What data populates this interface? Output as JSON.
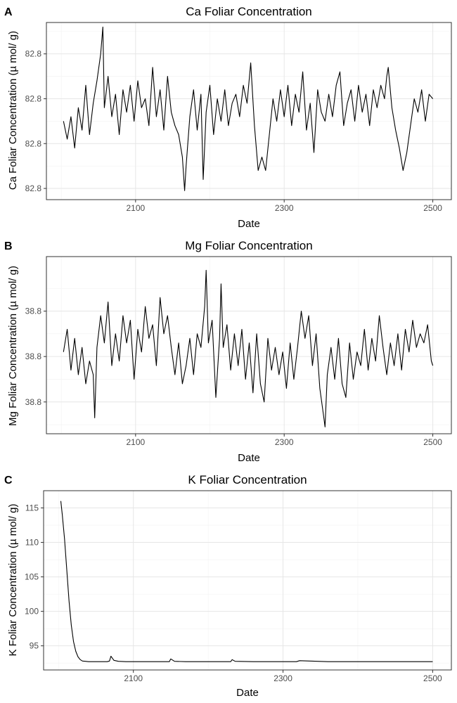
{
  "chart_data": [
    {
      "type": "line",
      "panel": "A",
      "title": "Ca Foliar Concentration",
      "xlabel": "Date",
      "ylabel": "Ca Foliar Concentration (µ mol/ g)",
      "xlim": [
        1980,
        2525
      ],
      "ylim": [
        -1.25,
        2.7
      ],
      "x_ticks": [
        2100,
        2300,
        2500
      ],
      "x_tick_labels": [
        "2100",
        "2300",
        "2500"
      ],
      "y_ticks": [
        -1,
        0,
        1,
        2
      ],
      "y_tick_labels": [
        "82.8",
        "82.8",
        "82.8",
        "82.8"
      ],
      "grid": true,
      "series": [
        {
          "x": [
            2003,
            2008,
            2013,
            2018,
            2023,
            2028,
            2033,
            2038,
            2043,
            2048,
            2053,
            2056,
            2058,
            2063,
            2068,
            2073,
            2078,
            2083,
            2088,
            2093,
            2098,
            2103,
            2108,
            2113,
            2118,
            2123,
            2128,
            2133,
            2138,
            2143,
            2148,
            2153,
            2158,
            2163,
            2166,
            2168,
            2173,
            2178,
            2183,
            2188,
            2191,
            2195,
            2200,
            2205,
            2210,
            2215,
            2220,
            2225,
            2230,
            2235,
            2240,
            2245,
            2250,
            2255,
            2260,
            2265,
            2270,
            2275,
            2280,
            2285,
            2290,
            2295,
            2300,
            2305,
            2310,
            2315,
            2320,
            2325,
            2330,
            2335,
            2340,
            2345,
            2350,
            2355,
            2360,
            2365,
            2370,
            2375,
            2380,
            2385,
            2390,
            2395,
            2400,
            2405,
            2410,
            2415,
            2420,
            2425,
            2430,
            2435,
            2438,
            2440,
            2445,
            2450,
            2455,
            2460,
            2465,
            2470,
            2475,
            2480,
            2485,
            2490,
            2495,
            2500
          ],
          "y": [
            0.5,
            0.1,
            0.6,
            -0.1,
            0.8,
            0.3,
            1.3,
            0.2,
            0.9,
            1.4,
            2.0,
            2.6,
            0.8,
            1.5,
            0.6,
            1.1,
            0.2,
            1.2,
            0.7,
            1.3,
            0.5,
            1.4,
            0.8,
            1.0,
            0.4,
            1.7,
            0.6,
            1.2,
            0.3,
            1.5,
            0.7,
            0.4,
            0.2,
            -0.3,
            -1.05,
            -0.5,
            0.6,
            1.2,
            0.3,
            1.1,
            -0.8,
            0.7,
            1.3,
            0.2,
            1.0,
            0.5,
            1.2,
            0.4,
            0.9,
            1.1,
            0.6,
            1.3,
            0.9,
            1.8,
            0.4,
            -0.6,
            -0.3,
            -0.6,
            0.2,
            1.0,
            0.5,
            1.2,
            0.6,
            1.3,
            0.4,
            1.1,
            0.7,
            1.6,
            0.3,
            0.9,
            -0.2,
            1.2,
            0.7,
            0.5,
            1.1,
            0.6,
            1.3,
            1.6,
            0.4,
            0.9,
            1.2,
            0.5,
            1.3,
            0.7,
            1.1,
            0.4,
            1.2,
            0.8,
            1.3,
            1.0,
            1.5,
            1.7,
            0.8,
            0.3,
            -0.1,
            -0.6,
            -0.2,
            0.4,
            1.0,
            0.7,
            1.2,
            0.5,
            1.1,
            1.0
          ]
        }
      ]
    },
    {
      "type": "line",
      "panel": "B",
      "title": "Mg Foliar Concentration",
      "xlabel": "Date",
      "ylabel": "Mg Foliar Concentration (µ mol/ g)",
      "xlim": [
        1980,
        2525
      ],
      "ylim": [
        -1.7,
        2.2
      ],
      "x_ticks": [
        2100,
        2300,
        2500
      ],
      "x_tick_labels": [
        "2100",
        "2300",
        "2500"
      ],
      "y_ticks": [
        -1,
        0,
        1
      ],
      "y_tick_labels": [
        "38.8",
        "38.8",
        "38.8"
      ],
      "grid": true,
      "series": [
        {
          "x": [
            2003,
            2008,
            2013,
            2018,
            2023,
            2028,
            2033,
            2038,
            2043,
            2045,
            2048,
            2053,
            2058,
            2063,
            2068,
            2073,
            2078,
            2083,
            2088,
            2093,
            2098,
            2103,
            2108,
            2113,
            2118,
            2123,
            2128,
            2133,
            2138,
            2143,
            2148,
            2153,
            2158,
            2163,
            2168,
            2173,
            2178,
            2183,
            2188,
            2193,
            2195,
            2198,
            2203,
            2208,
            2213,
            2215,
            2218,
            2223,
            2228,
            2233,
            2238,
            2243,
            2248,
            2253,
            2258,
            2263,
            2268,
            2273,
            2278,
            2283,
            2288,
            2293,
            2298,
            2303,
            2308,
            2313,
            2318,
            2323,
            2328,
            2333,
            2338,
            2343,
            2348,
            2353,
            2355,
            2358,
            2363,
            2368,
            2373,
            2378,
            2383,
            2388,
            2393,
            2398,
            2403,
            2408,
            2413,
            2418,
            2423,
            2428,
            2433,
            2438,
            2443,
            2448,
            2453,
            2458,
            2463,
            2468,
            2473,
            2478,
            2483,
            2488,
            2493,
            2498,
            2500
          ],
          "y": [
            0.1,
            0.6,
            -0.3,
            0.4,
            -0.4,
            0.2,
            -0.6,
            -0.1,
            -0.4,
            -1.35,
            0.2,
            0.9,
            0.3,
            1.2,
            -0.2,
            0.5,
            -0.1,
            0.9,
            0.3,
            0.8,
            -0.5,
            0.6,
            0.1,
            1.1,
            0.4,
            0.7,
            -0.2,
            1.3,
            0.5,
            0.9,
            0.2,
            -0.4,
            0.3,
            -0.6,
            -0.2,
            0.4,
            -0.4,
            0.5,
            0.2,
            1.1,
            1.9,
            0.3,
            0.8,
            -0.9,
            0.4,
            1.6,
            0.2,
            0.7,
            -0.3,
            0.5,
            -0.2,
            0.6,
            -0.5,
            0.3,
            -0.8,
            0.5,
            -0.6,
            -1.0,
            0.4,
            -0.3,
            0.2,
            -0.4,
            0.1,
            -0.7,
            0.3,
            -0.5,
            0.2,
            1.0,
            0.4,
            0.9,
            -0.2,
            0.5,
            -0.7,
            -1.3,
            -1.55,
            -0.4,
            0.2,
            -0.5,
            0.4,
            -0.6,
            -0.9,
            0.3,
            -0.5,
            0.1,
            -0.2,
            0.6,
            -0.3,
            0.4,
            -0.1,
            0.9,
            0.2,
            -0.4,
            0.3,
            -0.2,
            0.5,
            -0.3,
            0.6,
            0.1,
            0.8,
            0.2,
            0.5,
            0.3,
            0.7,
            -0.1,
            -0.2
          ]
        }
      ]
    },
    {
      "type": "line",
      "panel": "C",
      "title": "K Foliar Concentration",
      "xlabel": "Date",
      "ylabel": "K Foliar Concentration (µ mol/ g)",
      "xlim": [
        1980,
        2525
      ],
      "ylim": [
        91.5,
        117.5
      ],
      "x_ticks": [
        2100,
        2300,
        2500
      ],
      "x_tick_labels": [
        "2100",
        "2300",
        "2500"
      ],
      "y_ticks": [
        95,
        100,
        105,
        110,
        115
      ],
      "y_tick_labels": [
        "95",
        "100",
        "105",
        "110",
        "115"
      ],
      "grid": true,
      "series": [
        {
          "x": [
            2003,
            2005,
            2008,
            2011,
            2014,
            2017,
            2020,
            2023,
            2026,
            2029,
            2032,
            2036,
            2040,
            2045,
            2050,
            2055,
            2060,
            2065,
            2068,
            2070,
            2074,
            2080,
            2090,
            2100,
            2120,
            2140,
            2148,
            2150,
            2155,
            2170,
            2200,
            2230,
            2232,
            2236,
            2260,
            2300,
            2318,
            2322,
            2360,
            2400,
            2450,
            2500
          ],
          "y": [
            116.0,
            114.0,
            110.5,
            106.0,
            101.5,
            98.0,
            95.6,
            94.2,
            93.4,
            93.0,
            92.8,
            92.75,
            92.7,
            92.7,
            92.7,
            92.7,
            92.7,
            92.7,
            92.8,
            93.5,
            92.9,
            92.75,
            92.7,
            92.7,
            92.7,
            92.7,
            92.7,
            93.1,
            92.75,
            92.7,
            92.7,
            92.7,
            93.0,
            92.75,
            92.7,
            92.7,
            92.7,
            92.85,
            92.7,
            92.7,
            92.7,
            92.7
          ]
        }
      ]
    }
  ]
}
